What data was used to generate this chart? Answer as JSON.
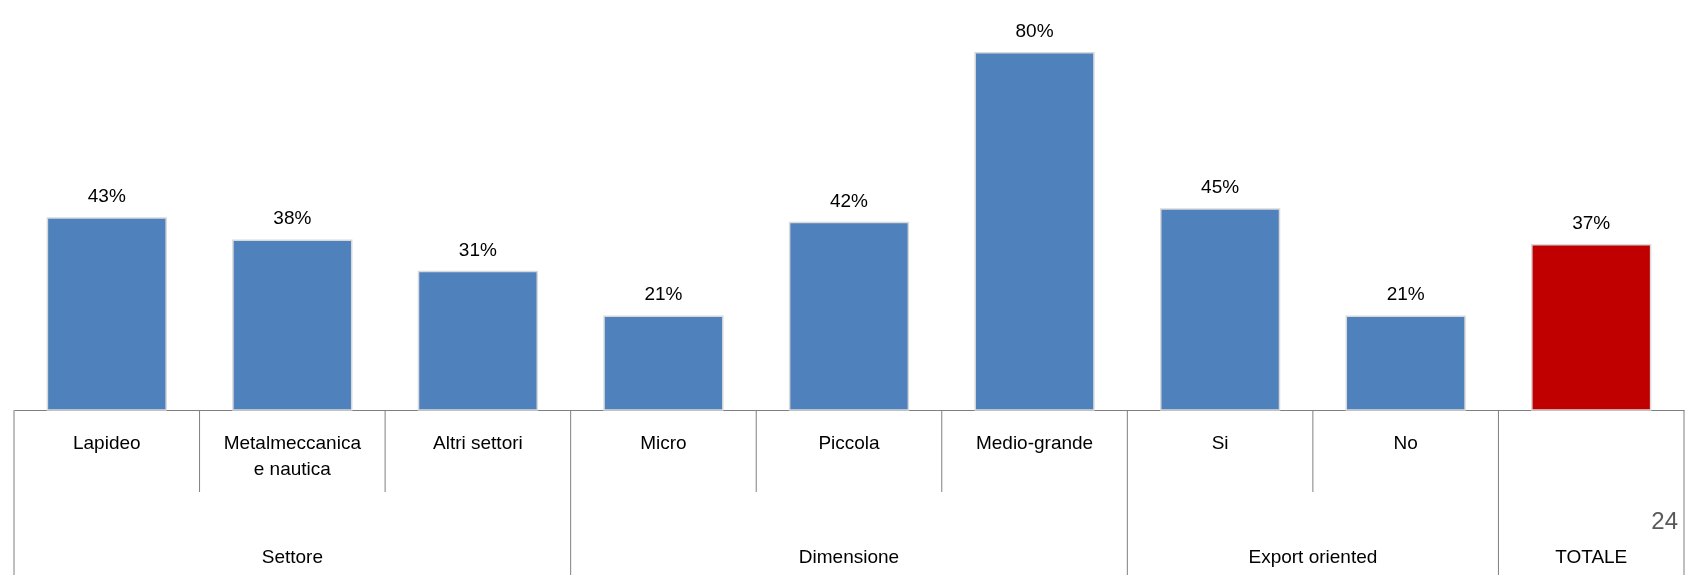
{
  "chart_data": {
    "type": "bar",
    "categories": [
      "Lapideo",
      "Metalmeccanica e nautica",
      "Altri settori",
      "Micro",
      "Piccola",
      "Medio-grande",
      "Si",
      "No",
      null
    ],
    "values": [
      43,
      38,
      31,
      21,
      42,
      80,
      45,
      21,
      37
    ],
    "colors": [
      "#4f81bd",
      "#4f81bd",
      "#4f81bd",
      "#4f81bd",
      "#4f81bd",
      "#4f81bd",
      "#4f81bd",
      "#4f81bd",
      "#c00000"
    ],
    "value_labels": [
      "43%",
      "38%",
      "31%",
      "21%",
      "42%",
      "80%",
      "45%",
      "21%",
      "37%"
    ],
    "annotations": [
      "Settore",
      "Dimensione",
      "Export oriented",
      "TOTALE",
      "24"
    ]
  }
}
